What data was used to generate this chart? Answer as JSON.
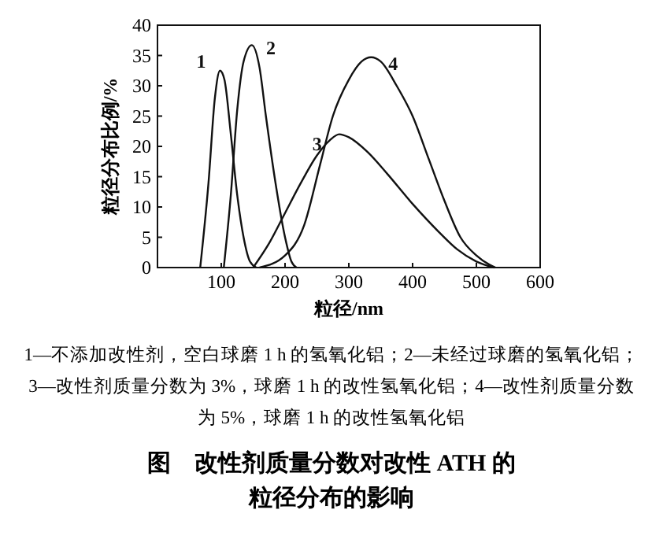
{
  "chart_data": {
    "type": "line",
    "title": "图　改性剂质量分数对改性 ATH 的粒径分布的影响",
    "xlabel": "粒径/nm",
    "ylabel": "粒径分布比例/%",
    "xlim": [
      0,
      600
    ],
    "ylim": [
      0,
      40
    ],
    "xticks": [
      {
        "value": 0,
        "label": null
      },
      100,
      200,
      300,
      400,
      500,
      600
    ],
    "yticks": [
      0,
      5,
      10,
      15,
      20,
      25,
      30,
      35,
      40
    ],
    "grid": false,
    "marker": "none",
    "line_style": "solid",
    "series": [
      {
        "name": "1",
        "color": "#111111",
        "x": [
          67,
          80,
          90,
          98,
          105,
          115,
          125,
          135,
          145,
          155
        ],
        "values": [
          0,
          14,
          28,
          32.5,
          31,
          22,
          12,
          5,
          1,
          0
        ]
      },
      {
        "name": "2",
        "color": "#111111",
        "x": [
          104,
          115,
          125,
          135,
          148,
          160,
          170,
          185,
          200,
          210,
          218
        ],
        "values": [
          0,
          12,
          26,
          34,
          36.7,
          33,
          25,
          14,
          5,
          1,
          0
        ]
      },
      {
        "name": "3",
        "color": "#111111",
        "x": [
          150,
          175,
          200,
          225,
          250,
          270,
          285,
          300,
          330,
          360,
          400,
          440,
          470,
          500,
          528
        ],
        "values": [
          0,
          4,
          9,
          14,
          18.5,
          21,
          22,
          21.5,
          19,
          15.5,
          10.5,
          6,
          3,
          1,
          0
        ]
      },
      {
        "name": "4",
        "color": "#111111",
        "x": [
          160,
          200,
          230,
          255,
          275,
          300,
          320,
          335,
          350,
          375,
          400,
          425,
          450,
          475,
          500,
          520,
          530
        ],
        "values": [
          0,
          2,
          7,
          17,
          25,
          31,
          34,
          34.7,
          34,
          30,
          25,
          18,
          11,
          5,
          2,
          0.5,
          0
        ]
      }
    ],
    "annotations": [
      "1—不添加改性剂，空白球磨 1 h 的氢氧化铝；2—未经过球磨的氢氧化铝；3—改性剂质量分数为 3%，球磨 1 h 的改性氢氧化铝；4—改性剂质量分数为 5%，球磨 1 h 的改性氢氧化铝"
    ]
  }
}
